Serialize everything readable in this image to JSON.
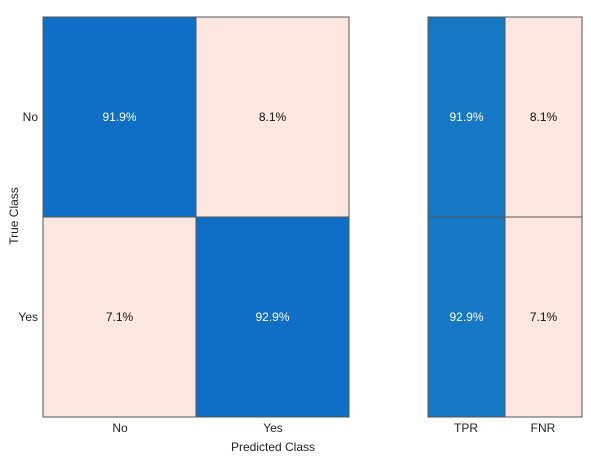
{
  "chart_data": [
    {
      "type": "heatmap",
      "title": "",
      "xlabel": "Predicted Class",
      "ylabel": "True Class",
      "x_categories": [
        "No",
        "Yes"
      ],
      "y_categories": [
        "No",
        "Yes"
      ],
      "values": [
        [
          "91.9%",
          "8.1%"
        ],
        [
          "7.1%",
          "92.9%"
        ]
      ],
      "numeric_values": [
        [
          91.9,
          8.1
        ],
        [
          7.1,
          92.9
        ]
      ]
    },
    {
      "type": "heatmap",
      "title": "",
      "x_categories": [
        "TPR",
        "FNR"
      ],
      "y_categories": [
        "No",
        "Yes"
      ],
      "values": [
        [
          "91.9%",
          "8.1%"
        ],
        [
          "92.9%",
          "7.1%"
        ]
      ],
      "numeric_values": [
        [
          91.9,
          8.1
        ],
        [
          92.9,
          7.1
        ]
      ]
    }
  ],
  "colors": {
    "high": "#0f6fc6",
    "high_alt": "#1677c4",
    "low": "#fbe7df",
    "border": "#555555",
    "text_on_high": "#ffffff",
    "text_on_low": "#111111",
    "axis_text": "#222222"
  }
}
